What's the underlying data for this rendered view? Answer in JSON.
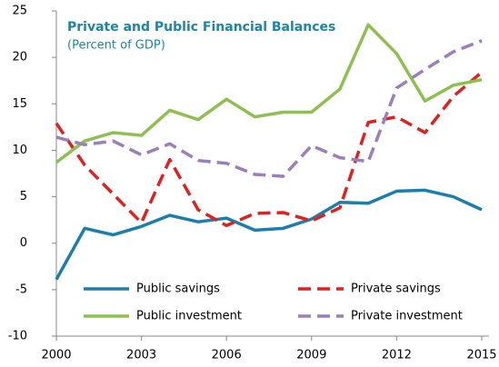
{
  "chart_data": {
    "type": "line",
    "title": "Private and Public Financial Balances",
    "subtitle": "(Percent of GDP)",
    "x": [
      2000,
      2001,
      2002,
      2003,
      2004,
      2005,
      2006,
      2007,
      2008,
      2009,
      2010,
      2011,
      2012,
      2013,
      2014,
      2015
    ],
    "xlim": [
      2000,
      2015
    ],
    "xticks": [
      2000,
      2003,
      2006,
      2009,
      2012,
      2015
    ],
    "ylim": [
      -10,
      25
    ],
    "yticks": [
      -10,
      -5,
      0,
      5,
      10,
      15,
      20,
      25
    ],
    "legend": "lower center",
    "series": [
      {
        "name": "Public savings",
        "color": "#1b7fad",
        "dashed": false,
        "values": [
          -3.9,
          1.6,
          0.9,
          1.8,
          3.0,
          2.3,
          2.7,
          1.4,
          1.6,
          2.6,
          4.4,
          4.3,
          5.6,
          5.7,
          5.0,
          3.6
        ]
      },
      {
        "name": "Private savings",
        "color": "#e3201f",
        "dashed": true,
        "values": [
          12.9,
          8.4,
          5.3,
          2.2,
          9.0,
          3.6,
          1.9,
          3.2,
          3.3,
          2.4,
          3.8,
          13.0,
          13.6,
          11.9,
          15.8,
          18.4
        ]
      },
      {
        "name": "Public investment",
        "color": "#8dc04f",
        "dashed": false,
        "values": [
          8.7,
          11.0,
          11.9,
          11.6,
          14.3,
          13.3,
          15.5,
          13.6,
          14.1,
          14.1,
          16.6,
          23.5,
          20.4,
          15.3,
          17.0,
          17.6
        ]
      },
      {
        "name": "Private investment",
        "color": "#9a7fb9",
        "dashed": true,
        "values": [
          11.4,
          10.6,
          11.0,
          9.5,
          10.7,
          8.9,
          8.6,
          7.4,
          7.2,
          10.5,
          9.2,
          8.8,
          16.7,
          18.7,
          20.6,
          21.8
        ]
      }
    ]
  }
}
